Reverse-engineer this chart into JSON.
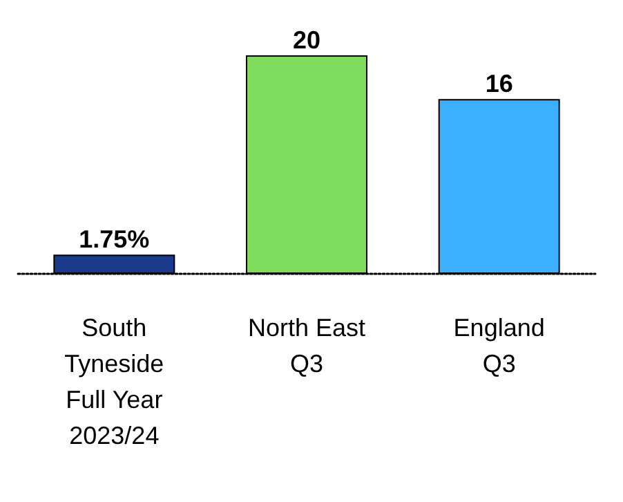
{
  "chart_data": {
    "type": "bar",
    "categories": [
      "South\nTyneside\nFull Year\n2023/24",
      "North East\nQ3",
      "England\nQ3"
    ],
    "values": [
      1.75,
      20,
      16
    ],
    "colors": [
      "#1b3a8c",
      "#80dc5c",
      "#3cb0ff"
    ],
    "value_labels": [
      "1.75%",
      "20",
      "16"
    ],
    "tick_labels": "x"
  }
}
